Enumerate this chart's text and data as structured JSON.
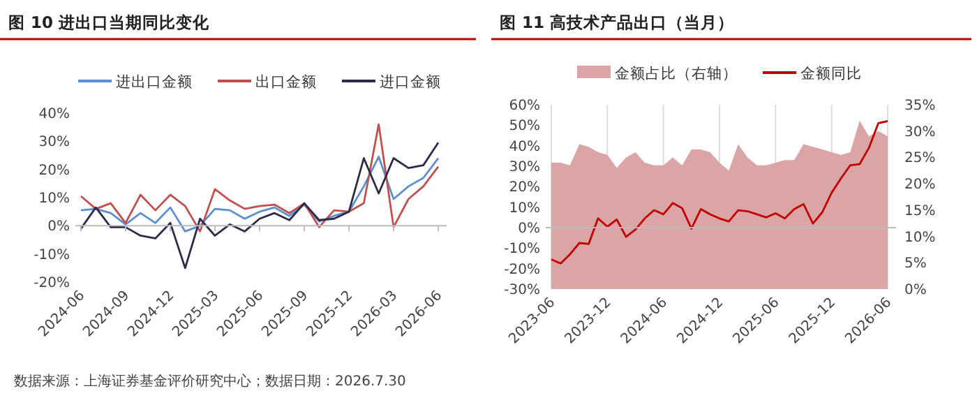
{
  "chart_data": [
    {
      "type": "line",
      "title": "图 10 进出口当期同比变化",
      "categories": [
        "2024-06",
        null,
        null,
        "2024-09",
        null,
        null,
        "2024-12",
        null,
        null,
        "2025-03",
        null,
        null,
        "2025-06",
        null,
        null,
        "2025-09",
        null,
        null,
        "2025-12",
        null,
        null,
        "2026-03",
        null,
        null,
        "2026-06"
      ],
      "series": [
        {
          "name": "进出口金额",
          "color": "#5b8fd0",
          "values": [
            5.5,
            6,
            4.5,
            0.5,
            4.5,
            1,
            6.5,
            -2,
            0,
            6,
            5.5,
            2.5,
            5,
            6.5,
            3.5,
            7.5,
            1.5,
            3.5,
            5,
            14,
            24.5,
            9.5,
            14,
            17,
            24
          ]
        },
        {
          "name": "出口金额",
          "color": "#c0504d",
          "values": [
            10.5,
            6,
            8,
            1,
            11,
            5.5,
            11,
            7,
            -2,
            13,
            9,
            6,
            7,
            7.5,
            4.5,
            8,
            -0.5,
            5.5,
            5,
            8,
            36,
            -0.5,
            9.5,
            14,
            21
          ]
        },
        {
          "name": "进口金额",
          "color": "#2e2a4a",
          "values": [
            -1,
            6.5,
            -0.5,
            -0.5,
            -3.5,
            -4.5,
            1,
            -15,
            2.5,
            -3.5,
            0.5,
            -2,
            2.5,
            4.5,
            2,
            8,
            2,
            2.5,
            5,
            24,
            11.5,
            24,
            20.5,
            21.5,
            29.5
          ]
        }
      ],
      "ylim": [
        -20,
        40
      ],
      "yticks": [
        {
          "value": -20,
          "label": "-20%"
        },
        {
          "value": -10,
          "label": "-10%"
        },
        {
          "value": 0,
          "label": "0%"
        },
        {
          "value": 10,
          "label": "10%"
        },
        {
          "value": 20,
          "label": "20%"
        },
        {
          "value": 30,
          "label": "30%"
        },
        {
          "value": 40,
          "label": "40%"
        }
      ],
      "legend": "top",
      "annotations": [
        "数据来源：上海证券基金评价研究中心；数据日期：2026.7.30"
      ]
    },
    {
      "type": "line",
      "title": "图 11 高技术产品出口（当月）",
      "categories": [
        "2023-06",
        null,
        null,
        null,
        null,
        null,
        "2023-12",
        null,
        null,
        null,
        null,
        null,
        "2024-06",
        null,
        null,
        null,
        null,
        null,
        "2024-12",
        null,
        null,
        null,
        null,
        null,
        "2025-06",
        null,
        null,
        null,
        null,
        null,
        "2025-12",
        null,
        null,
        null,
        null,
        null,
        "2026-06"
      ],
      "series": [
        {
          "name": "金额占比（右轴）",
          "type": "area",
          "axis": "y2",
          "color": "#dba5a5",
          "values": [
            24,
            24,
            23.5,
            27.5,
            27,
            26,
            25.5,
            23,
            25,
            26,
            24,
            23.5,
            23.5,
            25,
            23.5,
            26.5,
            26.5,
            26,
            24,
            22.5,
            27.5,
            25,
            23.5,
            23.5,
            24,
            24.5,
            24.5,
            27.5,
            27,
            26.5,
            26,
            25.5,
            26,
            32,
            29,
            30,
            29
          ]
        },
        {
          "name": "金额同比",
          "type": "line",
          "color": "#c00000",
          "values": [
            -15.5,
            -17.5,
            -13,
            -7.5,
            -8,
            4.5,
            0.5,
            4,
            -4.5,
            -1,
            4.5,
            8.5,
            6.5,
            12,
            9.5,
            -0.5,
            9,
            6.5,
            4.5,
            3,
            8.5,
            8,
            6.5,
            5,
            7,
            4.5,
            9,
            11.5,
            2,
            7.5,
            17,
            24,
            30.5,
            31,
            39,
            51,
            52
          ]
        }
      ],
      "ylim": [
        -30,
        60
      ],
      "yticks": [
        {
          "value": -30,
          "label": "-30%"
        },
        {
          "value": -20,
          "label": "-20%"
        },
        {
          "value": -10,
          "label": "-10%"
        },
        {
          "value": 0,
          "label": "0%"
        },
        {
          "value": 10,
          "label": "10%"
        },
        {
          "value": 20,
          "label": "20%"
        },
        {
          "value": 30,
          "label": "30%"
        },
        {
          "value": 40,
          "label": "40%"
        },
        {
          "value": 50,
          "label": "50%"
        },
        {
          "value": 60,
          "label": "60%"
        }
      ],
      "y2lim": [
        0,
        35
      ],
      "y2ticks": [
        {
          "value": 0,
          "label": "0%"
        },
        {
          "value": 5,
          "label": "5%"
        },
        {
          "value": 10,
          "label": "10%"
        },
        {
          "value": 15,
          "label": "15%"
        },
        {
          "value": 20,
          "label": "20%"
        },
        {
          "value": 25,
          "label": "25%"
        },
        {
          "value": 30,
          "label": "30%"
        },
        {
          "value": 35,
          "label": "35%"
        }
      ],
      "grid": "x",
      "legend": "top"
    }
  ]
}
